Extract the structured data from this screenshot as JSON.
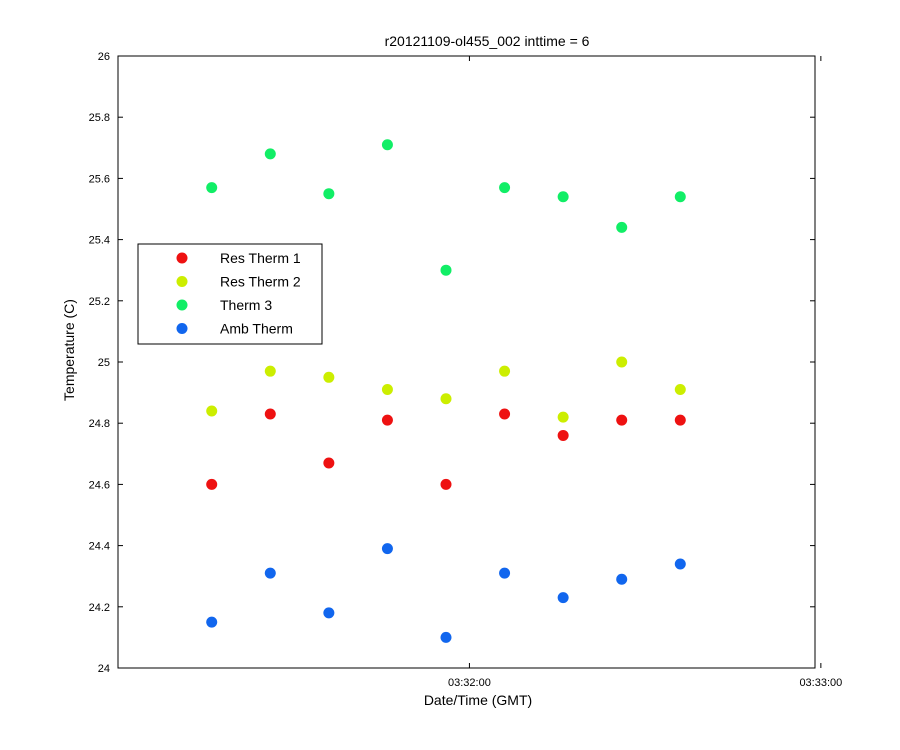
{
  "chart_data": {
    "type": "scatter",
    "title": "r20121109-ol455_002 inttime = 6",
    "xlabel": "Date/Time (GMT)",
    "ylabel": "Temperature (C)",
    "x_unit": "seconds after 03:31:00",
    "x": [
      16,
      26,
      36,
      46,
      56,
      66,
      76,
      86,
      96
    ],
    "xlim": [
      0,
      119
    ],
    "x_ticks": [
      {
        "value": 60,
        "label": "03:32:00"
      },
      {
        "value": 120,
        "label": "03:33:00"
      }
    ],
    "ylim": [
      24,
      26
    ],
    "y_ticks": [
      "24",
      "24.2",
      "24.4",
      "24.6",
      "24.8",
      "25",
      "25.2",
      "25.4",
      "25.6",
      "25.8",
      "26"
    ],
    "grid": false,
    "legend_position": "middle-left",
    "series": [
      {
        "name": "Res Therm 1",
        "color": "#ee1111",
        "values": [
          24.6,
          24.83,
          24.67,
          24.81,
          24.6,
          24.83,
          24.76,
          24.81,
          24.81
        ]
      },
      {
        "name": "Res Therm 2",
        "color": "#ccee00",
        "values": [
          24.84,
          24.97,
          24.95,
          24.91,
          24.88,
          24.97,
          24.82,
          25.0,
          24.91
        ]
      },
      {
        "name": "Therm 3",
        "color": "#11ee66",
        "values": [
          25.57,
          25.68,
          25.55,
          25.71,
          25.3,
          25.57,
          25.54,
          25.44,
          25.54
        ]
      },
      {
        "name": "Amb Therm",
        "color": "#1166ee",
        "values": [
          24.15,
          24.31,
          24.18,
          24.39,
          24.1,
          24.31,
          24.23,
          24.29,
          24.34
        ]
      }
    ]
  }
}
